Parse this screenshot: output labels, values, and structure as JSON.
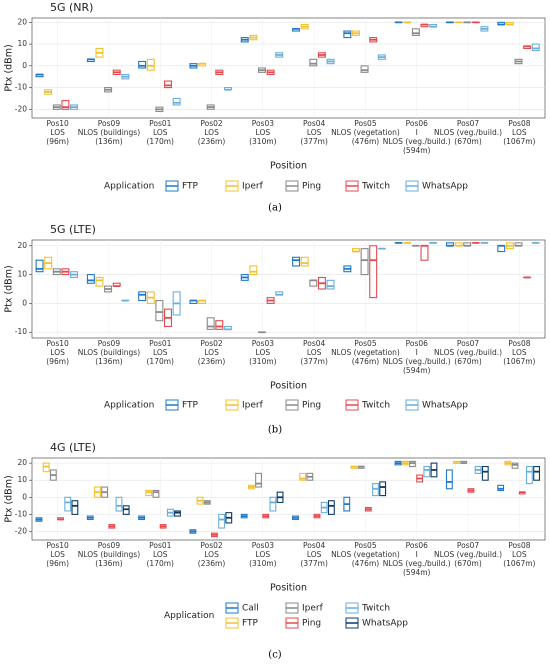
{
  "chart_data": [
    {
      "type": "box",
      "title": "5G (NR)",
      "x_label": "Position",
      "y_label": "Ptx (dBm)",
      "legend_title": "Application",
      "caption": "(a)",
      "legend_rows": 1,
      "grid": true,
      "categories": [
        [
          "Pos10",
          "LOS",
          "(96m)"
        ],
        [
          "Pos09",
          "NLOS (buildings)",
          "(136m)"
        ],
        [
          "Pos01",
          "LOS",
          "(170m)"
        ],
        [
          "Pos02",
          "LOS",
          "(236m)"
        ],
        [
          "Pos03",
          "LOS",
          "(310m)"
        ],
        [
          "Pos04",
          "LOS",
          "(377m)"
        ],
        [
          "Pos05",
          "NLOS (vegetation)",
          "(476m)"
        ],
        [
          "Pos06",
          "I",
          "NLOS (veg./build.)",
          "(594m)"
        ],
        [
          "Pos07",
          "NLOS (veg./build.)",
          "(670m)"
        ],
        [
          "Pos08",
          "LOS",
          "(1067m)"
        ]
      ],
      "category_colors": [
        "#222",
        "#e02020",
        "#222",
        "#222",
        "#222",
        "#222",
        "#f0a500",
        "#2222d0",
        "#2222d0",
        "#222"
      ],
      "ylim": [
        -24,
        22
      ],
      "yticks": [
        -20,
        -10,
        0,
        10,
        20
      ],
      "series": [
        {
          "name": "FTP",
          "color": "#1f78c8",
          "values": [
            -4,
            3,
            0,
            0,
            12,
            17,
            15,
            20,
            20,
            19
          ],
          "q1": [
            -5,
            2,
            -1,
            -1,
            11,
            16,
            13,
            20,
            20,
            19
          ],
          "q3": [
            -4,
            3,
            2,
            1,
            13,
            17,
            16,
            20,
            20,
            20
          ]
        },
        {
          "name": "Iperf",
          "color": "#f2c12e",
          "values": [
            -12,
            6,
            0,
            1,
            13,
            18,
            15,
            20,
            20,
            19
          ],
          "q1": [
            -13,
            4,
            -2,
            0,
            12,
            17,
            14,
            20,
            20,
            19
          ],
          "q3": [
            -11,
            8,
            3,
            1,
            14,
            19,
            16,
            20,
            20,
            20
          ]
        },
        {
          "name": "Ping",
          "color": "#8a8a8a",
          "values": [
            -19,
            -11,
            -20,
            -19,
            -2,
            1,
            -2,
            15,
            20,
            2
          ],
          "q1": [
            -20,
            -12,
            -21,
            -20,
            -3,
            0,
            -3,
            14,
            20,
            1
          ],
          "q3": [
            -18,
            -10,
            -19,
            -18,
            -1,
            3,
            0,
            17,
            20,
            3
          ]
        },
        {
          "name": "Twitch",
          "color": "#e5484d",
          "values": [
            -19,
            -3,
            -9,
            -3,
            -3,
            5,
            12,
            19,
            20,
            9
          ],
          "q1": [
            -20,
            -4,
            -10,
            -4,
            -4,
            4,
            11,
            18,
            20,
            8
          ],
          "q3": [
            -16,
            -2,
            -7,
            -2,
            -2,
            6,
            13,
            19,
            20,
            9
          ]
        },
        {
          "name": "WhatsApp",
          "color": "#6aaedb",
          "values": [
            -19,
            -5,
            -17,
            -11,
            5,
            2,
            4,
            18,
            17,
            8
          ],
          "q1": [
            -20,
            -6,
            -18,
            -11,
            4,
            1,
            3,
            18,
            16,
            7
          ],
          "q3": [
            -18,
            -4,
            -15,
            -10,
            6,
            3,
            5,
            19,
            18,
            10
          ]
        }
      ]
    },
    {
      "type": "box",
      "title": "5G (LTE)",
      "x_label": "Position",
      "y_label": "Ptx (dBm)",
      "legend_title": "Application",
      "caption": "(b)",
      "legend_rows": 1,
      "grid": true,
      "categories": [
        [
          "Pos10",
          "LOS",
          "(96m)"
        ],
        [
          "Pos09",
          "NLOS (buildings)",
          "(136m)"
        ],
        [
          "Pos01",
          "LOS",
          "(170m)"
        ],
        [
          "Pos02",
          "LOS",
          "(236m)"
        ],
        [
          "Pos03",
          "LOS",
          "(310m)"
        ],
        [
          "Pos04",
          "LOS",
          "(377m)"
        ],
        [
          "Pos05",
          "NLOS (vegetation)",
          "(476m)"
        ],
        [
          "Pos06",
          "I",
          "NLOS (veg./build.)",
          "(594m)"
        ],
        [
          "Pos07",
          "NLOS (veg./build.)",
          "(670m)"
        ],
        [
          "Pos08",
          "LOS",
          "(1067m)"
        ]
      ],
      "category_colors": [
        "#222",
        "#e02020",
        "#222",
        "#222",
        "#222",
        "#222",
        "#f0a500",
        "#2222d0",
        "#2222d0",
        "#222"
      ],
      "ylim": [
        -12,
        22
      ],
      "yticks": [
        -10,
        0,
        10,
        20
      ],
      "series": [
        {
          "name": "FTP",
          "color": "#1f78c8",
          "values": [
            12,
            8,
            3,
            1,
            9,
            15,
            12,
            21,
            20,
            20
          ],
          "q1": [
            11,
            7,
            1,
            0,
            8,
            13,
            11,
            21,
            20,
            18
          ],
          "q3": [
            15,
            10,
            4,
            1,
            10,
            16,
            13,
            21,
            21,
            20
          ]
        },
        {
          "name": "Iperf",
          "color": "#f2c12e",
          "values": [
            14,
            8,
            2,
            1,
            11,
            14,
            18,
            21,
            20,
            20
          ],
          "q1": [
            12,
            6,
            0,
            0,
            10,
            13,
            18,
            21,
            20,
            19
          ],
          "q3": [
            16,
            9,
            4,
            1,
            13,
            16,
            19,
            21,
            21,
            21
          ]
        },
        {
          "name": "Ping",
          "color": "#8a8a8a",
          "values": [
            11,
            5,
            -3,
            -8,
            -10,
            8,
            15,
            20,
            20,
            20
          ],
          "q1": [
            10,
            4,
            -6,
            -9,
            -10,
            6,
            10,
            20,
            20,
            20
          ],
          "q3": [
            12,
            6,
            1,
            -5,
            -10,
            8,
            19,
            20,
            21,
            21
          ]
        },
        {
          "name": "Twitch",
          "color": "#e5484d",
          "values": [
            11,
            6,
            -5,
            -8,
            1,
            7,
            15,
            20,
            21,
            9
          ],
          "q1": [
            10,
            6,
            -8,
            -9,
            0,
            5,
            2,
            15,
            21,
            9
          ],
          "q3": [
            12,
            7,
            -2,
            -6,
            2,
            9,
            20,
            20,
            21,
            9
          ]
        },
        {
          "name": "WhatsApp",
          "color": "#6aaedb",
          "values": [
            10,
            1,
            0,
            -9,
            3,
            6,
            19,
            21,
            21,
            21
          ],
          "q1": [
            9,
            1,
            -4,
            -9,
            3,
            5,
            19,
            21,
            21,
            21
          ],
          "q3": [
            11,
            1,
            4,
            -8,
            4,
            8,
            19,
            21,
            21,
            21
          ]
        }
      ]
    },
    {
      "type": "box",
      "title": "4G (LTE)",
      "x_label": "Position",
      "y_label": "Ptx (dBm)",
      "legend_title": "Application",
      "caption": "(c)",
      "legend_rows": 2,
      "grid": true,
      "categories": [
        [
          "Pos10",
          "LOS",
          "(96m)"
        ],
        [
          "Pos09",
          "NLOS (buildings)",
          "(136m)"
        ],
        [
          "Pos01",
          "LOS",
          "(170m)"
        ],
        [
          "Pos02",
          "LOS",
          "(236m)"
        ],
        [
          "Pos03",
          "LOS",
          "(310m)"
        ],
        [
          "Pos04",
          "LOS",
          "(377m)"
        ],
        [
          "Pos05",
          "NLOS (vegetation)",
          "(476m)"
        ],
        [
          "Pos06",
          "I",
          "NLOS (veg./build.)",
          "(594m)"
        ],
        [
          "Pos07",
          "NLOS (veg./build.)",
          "(670m)"
        ],
        [
          "Pos08",
          "LOS",
          "(1067m)"
        ]
      ],
      "category_colors": [
        "#222",
        "#e02020",
        "#222",
        "#222",
        "#222",
        "#222",
        "#f0a500",
        "#2222d0",
        "#2222d0",
        "#222"
      ],
      "ylim": [
        -25,
        23
      ],
      "yticks": [
        -20,
        -10,
        0,
        10,
        20
      ],
      "series": [
        {
          "name": "Call",
          "color": "#1f78c8",
          "values": [
            -13,
            -12,
            -12,
            -20,
            -11,
            -12,
            -4,
            20,
            9,
            5
          ],
          "q1": [
            -14,
            -13,
            -13,
            -21,
            -12,
            -13,
            -8,
            19,
            5,
            4
          ],
          "q3": [
            -12,
            -11,
            -11,
            -19,
            -10,
            -11,
            0,
            21,
            16,
            7
          ]
        },
        {
          "name": "FTP",
          "color": "#f2c12e",
          "values": [
            18,
            3,
            3,
            -2,
            6,
            11,
            18,
            20,
            20,
            20
          ],
          "q1": [
            15,
            0,
            1,
            -4,
            5,
            10,
            17,
            19,
            20,
            19
          ],
          "q3": [
            20,
            6,
            4,
            0,
            7,
            14,
            18,
            21,
            21,
            21
          ]
        },
        {
          "name": "Iperf",
          "color": "#8a8a8a",
          "values": [
            13,
            3,
            3,
            -3,
            8,
            12,
            18,
            20,
            20,
            19
          ],
          "q1": [
            10,
            0,
            0,
            -4,
            6,
            10,
            17,
            18,
            20,
            17
          ],
          "q3": [
            16,
            6,
            4,
            -2,
            14,
            14,
            18,
            21,
            21,
            20
          ]
        },
        {
          "name": "Ping",
          "color": "#e5484d",
          "values": [
            -13,
            -17,
            -17,
            -22,
            -11,
            -11,
            -7,
            11,
            4,
            3
          ],
          "q1": [
            -13,
            -18,
            -18,
            -23,
            -12,
            -12,
            -8,
            9,
            3,
            2
          ],
          "q3": [
            -12,
            -16,
            -16,
            -21,
            -10,
            -10,
            -6,
            13,
            5,
            3
          ]
        },
        {
          "name": "Twitch",
          "color": "#6aaedb",
          "values": [
            -3,
            -5,
            -9,
            -13,
            -3,
            -6,
            5,
            16,
            16,
            15
          ],
          "q1": [
            -8,
            -8,
            -11,
            -18,
            -8,
            -9,
            1,
            12,
            14,
            8
          ],
          "q3": [
            0,
            0,
            -7,
            -10,
            0,
            -3,
            8,
            18,
            18,
            18
          ]
        },
        {
          "name": "WhatsApp",
          "color": "#0d3b66",
          "values": [
            -5,
            -7,
            -9,
            -12,
            0,
            -5,
            6,
            16,
            15,
            15
          ],
          "q1": [
            -10,
            -10,
            -11,
            -15,
            -3,
            -10,
            1,
            12,
            10,
            10
          ],
          "q3": [
            -2,
            -5,
            -8,
            -9,
            3,
            -2,
            9,
            20,
            18,
            18
          ]
        }
      ]
    }
  ]
}
